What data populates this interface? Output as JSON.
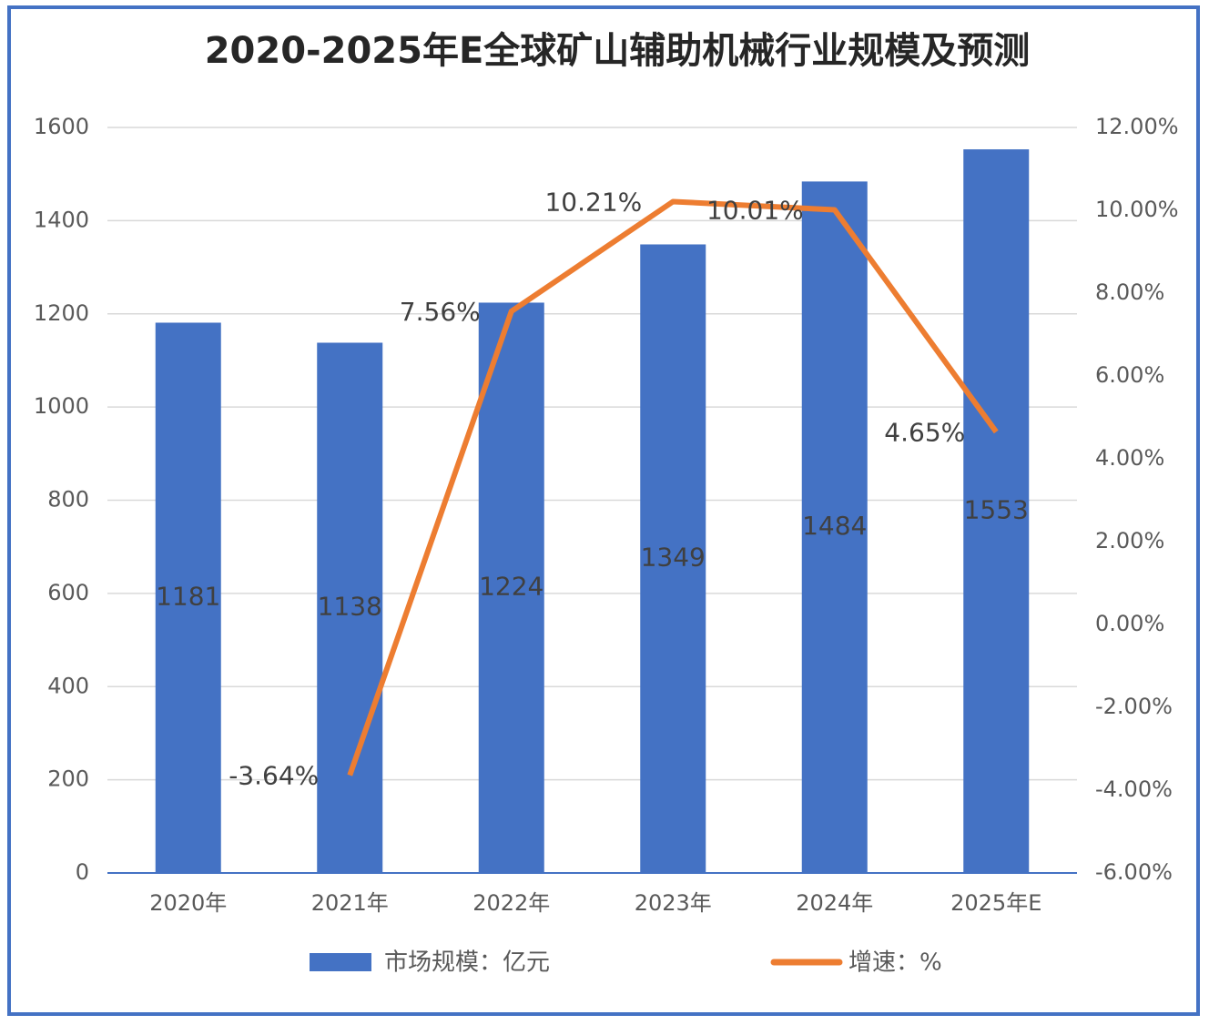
{
  "chart_data": {
    "type": "bar",
    "title": "2020-2025年E全球矿山辅助机械行业规模及预测",
    "categories": [
      "2020年",
      "2021年",
      "2022年",
      "2023年",
      "2024年",
      "2025年E"
    ],
    "series": [
      {
        "name": "市场规模：亿元",
        "type": "bar",
        "color": "#4472c4",
        "values": [
          1181,
          1138,
          1224,
          1349,
          1484,
          1553
        ]
      },
      {
        "name": "增速：%",
        "type": "line",
        "axis": "y2",
        "color": "#ed7d31",
        "values": [
          null,
          -3.64,
          7.56,
          10.21,
          10.01,
          4.65
        ],
        "value_labels": [
          null,
          "-3.64%",
          "7.56%",
          "10.21%",
          "10.01%",
          "4.65%"
        ]
      }
    ],
    "ylim": [
      0,
      1600
    ],
    "yticks": [
      0,
      200,
      400,
      600,
      800,
      1000,
      1200,
      1400,
      1600
    ],
    "y2lim": [
      -6,
      12
    ],
    "y2ticks": [
      {
        "value": -6,
        "label": "-6.00%"
      },
      {
        "value": -4,
        "label": "-4.00%"
      },
      {
        "value": -2,
        "label": "-2.00%"
      },
      {
        "value": 0,
        "label": "0.00%"
      },
      {
        "value": 2,
        "label": "2.00%"
      },
      {
        "value": 4,
        "label": "4.00%"
      },
      {
        "value": 6,
        "label": "6.00%"
      },
      {
        "value": 8,
        "label": "8.00%"
      },
      {
        "value": 10,
        "label": "10.00%"
      },
      {
        "value": 12,
        "label": "12.00%"
      }
    ],
    "grid": true,
    "legend": "bottom"
  }
}
